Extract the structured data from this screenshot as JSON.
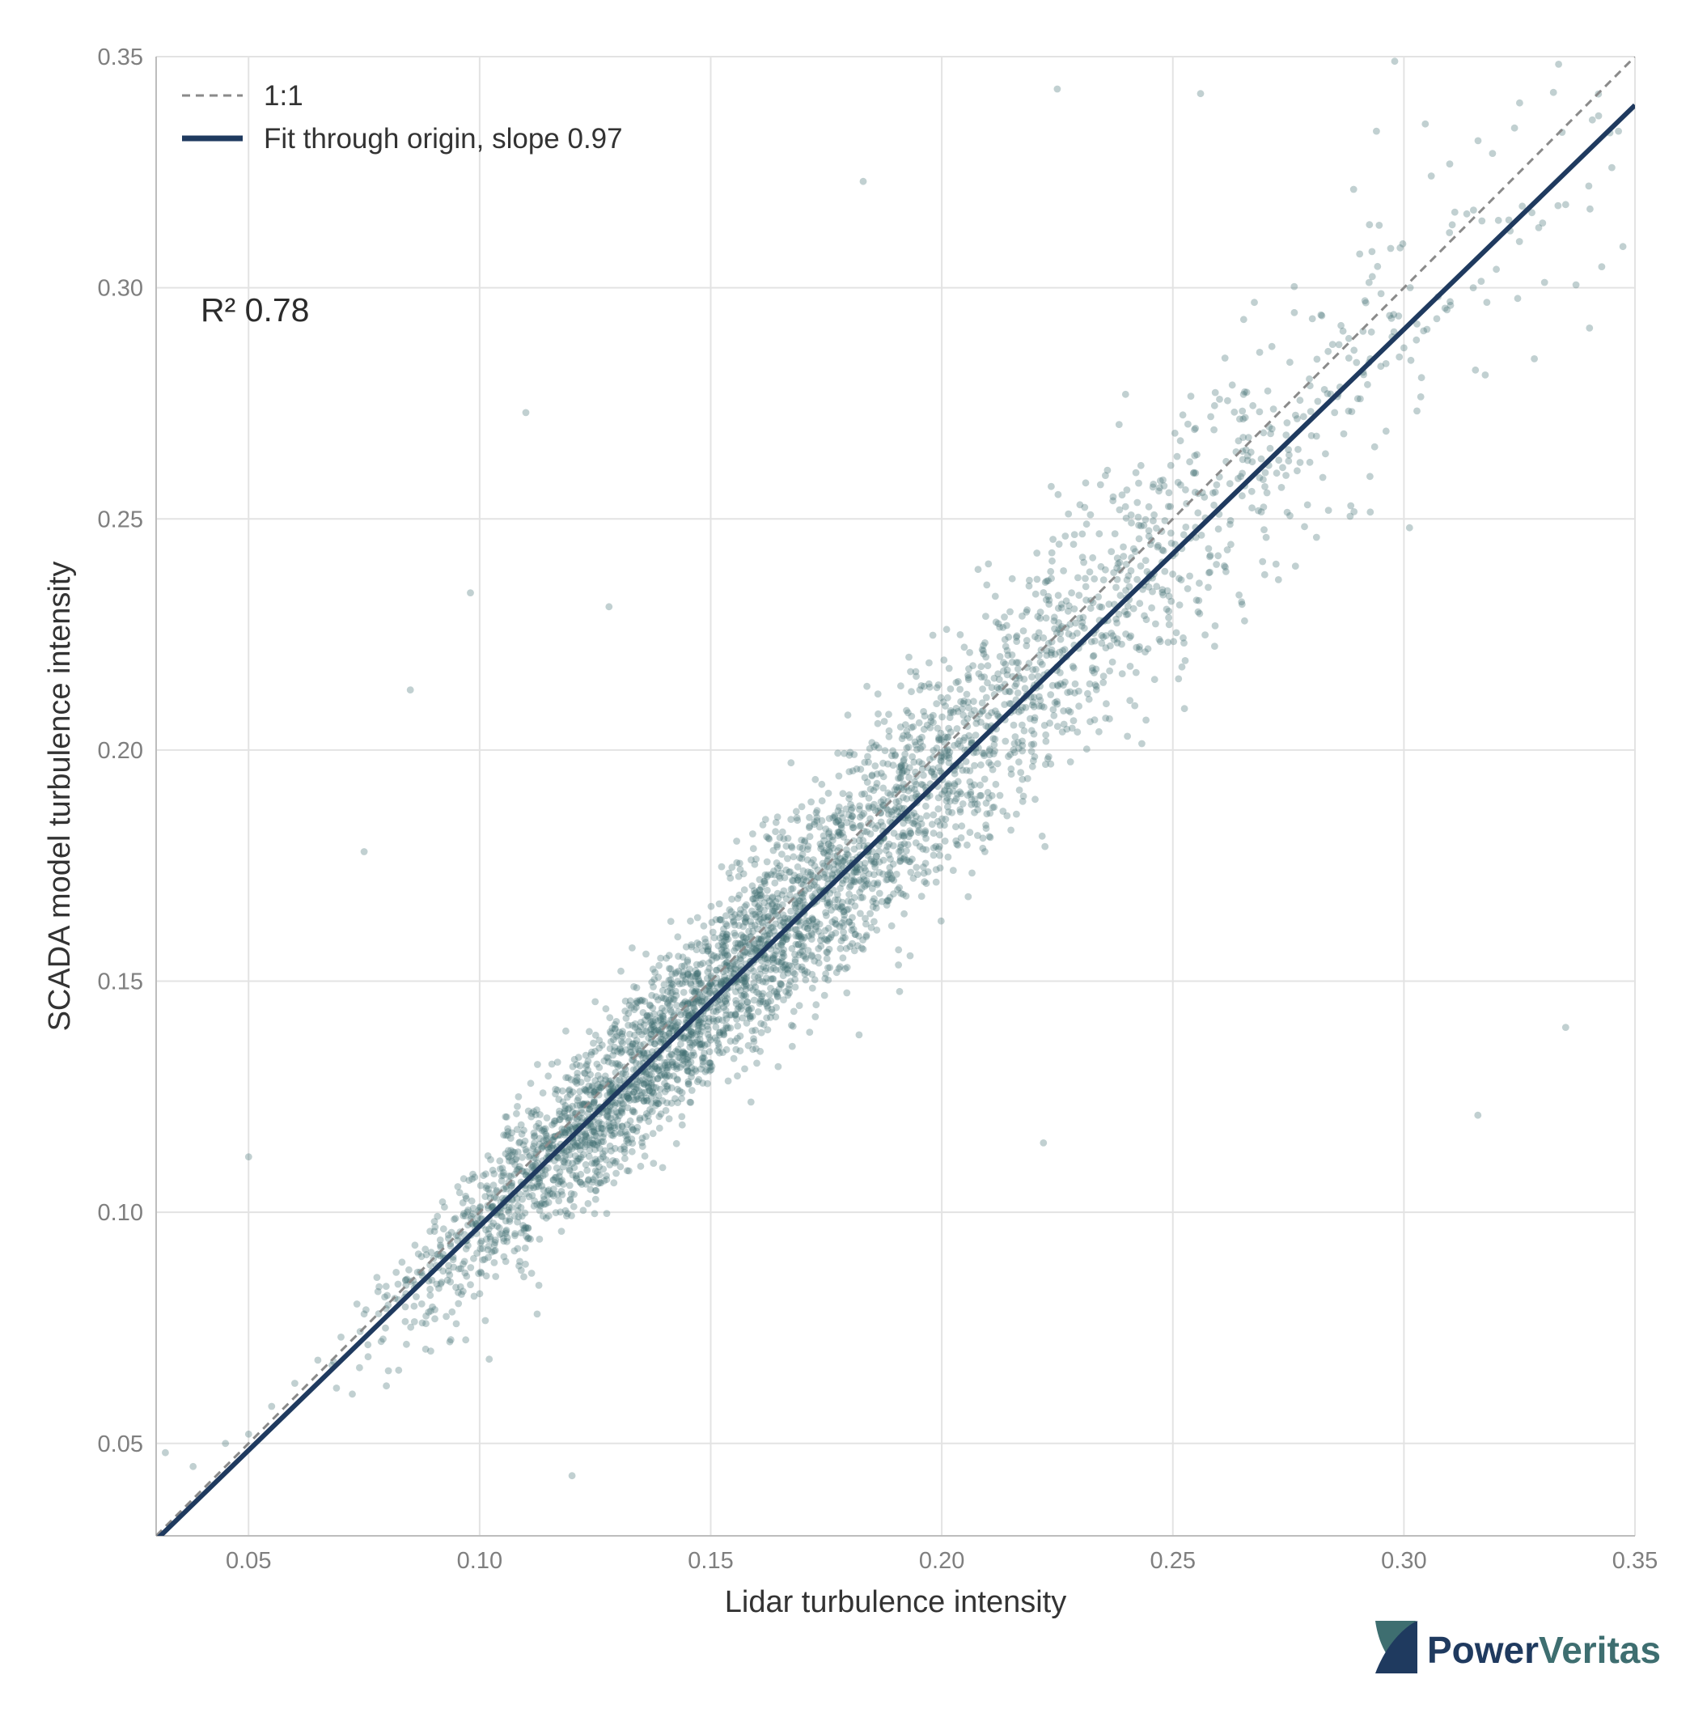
{
  "chart_data": {
    "type": "scatter",
    "title": "",
    "xlabel": "Lidar turbulence intensity",
    "ylabel": "SCADA model turbulence intensity",
    "xlim": [
      0.03,
      0.35
    ],
    "ylim": [
      0.03,
      0.35
    ],
    "xticks": [
      "0.05",
      "0.10",
      "0.15",
      "0.20",
      "0.25",
      "0.30",
      "0.35"
    ],
    "yticks": [
      "0.05",
      "0.10",
      "0.15",
      "0.20",
      "0.25",
      "0.30",
      "0.35"
    ],
    "grid": true,
    "legend_position": "top-left",
    "series": [
      {
        "name": "1:1",
        "kind": "line",
        "style": "dashed",
        "color": "#8a8a8a",
        "slope": 1.0
      },
      {
        "name": "Fit through origin, slope 0.97",
        "kind": "line",
        "style": "solid",
        "color": "#1f3a5f",
        "slope": 0.97
      }
    ],
    "scatter": {
      "color": "#3e6e70",
      "approx_points": 4000,
      "x": [
        0.032,
        0.038,
        0.045,
        0.05,
        0.055,
        0.06,
        0.065,
        0.07,
        0.075,
        0.08,
        0.085,
        0.09,
        0.095,
        0.1,
        0.105,
        0.11,
        0.115,
        0.12,
        0.125,
        0.13,
        0.135,
        0.14,
        0.145,
        0.15,
        0.155,
        0.16,
        0.165,
        0.17,
        0.175,
        0.18,
        0.185,
        0.19,
        0.195,
        0.2,
        0.205,
        0.21,
        0.215,
        0.22,
        0.225,
        0.23,
        0.235,
        0.24,
        0.245,
        0.25,
        0.255,
        0.26,
        0.265,
        0.27,
        0.275,
        0.28,
        0.285,
        0.29,
        0.295,
        0.3,
        0.305,
        0.31,
        0.315,
        0.32,
        0.325,
        0.33,
        0.335,
        0.34,
        0.345,
        0.05,
        0.085,
        0.098,
        0.11,
        0.183,
        0.225,
        0.256,
        0.298,
        0.12,
        0.335,
        0.316,
        0.222,
        0.075,
        0.128
      ],
      "y": [
        0.048,
        0.045,
        0.05,
        0.052,
        0.058,
        0.063,
        0.068,
        0.073,
        0.078,
        0.082,
        0.085,
        0.09,
        0.095,
        0.1,
        0.103,
        0.108,
        0.112,
        0.118,
        0.122,
        0.127,
        0.131,
        0.136,
        0.14,
        0.145,
        0.15,
        0.156,
        0.16,
        0.165,
        0.17,
        0.175,
        0.178,
        0.185,
        0.19,
        0.195,
        0.2,
        0.205,
        0.21,
        0.214,
        0.218,
        0.223,
        0.228,
        0.233,
        0.238,
        0.242,
        0.246,
        0.251,
        0.255,
        0.26,
        0.265,
        0.268,
        0.273,
        0.276,
        0.283,
        0.287,
        0.291,
        0.297,
        0.3,
        0.304,
        0.31,
        0.314,
        0.318,
        0.322,
        0.326,
        0.112,
        0.213,
        0.234,
        0.273,
        0.323,
        0.343,
        0.342,
        0.349,
        0.043,
        0.14,
        0.121,
        0.115,
        0.178,
        0.231
      ],
      "r2_value": 0.78
    },
    "annotation": "R² 0.78"
  },
  "logo": {
    "name_part1": "Power",
    "name_part2": "Veritas",
    "color_dark": "#1f3a5f",
    "color_teal": "#3e6e70"
  }
}
